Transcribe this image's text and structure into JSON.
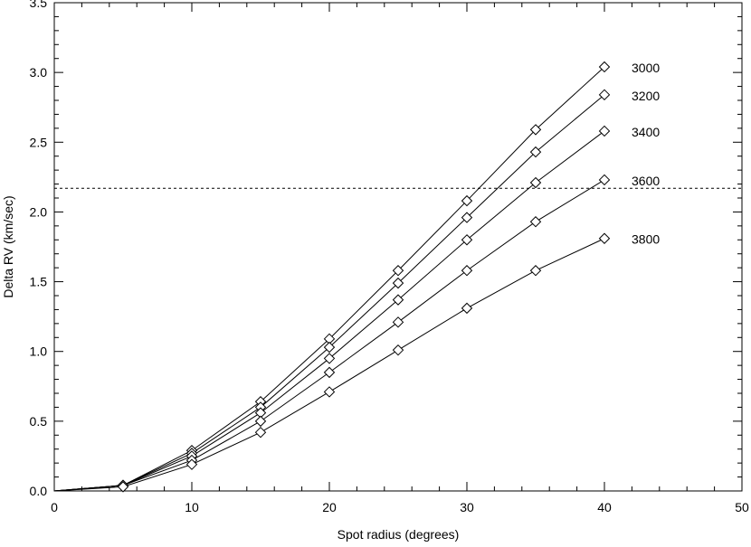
{
  "chart_data": {
    "type": "line",
    "title": "",
    "xlabel": "Spot radius (degrees)",
    "ylabel": "Delta RV (km/sec)",
    "xlim": [
      0,
      50
    ],
    "ylim": [
      0,
      3.5
    ],
    "xticks": [
      0,
      10,
      20,
      30,
      40,
      50
    ],
    "xtick_labels": [
      "0",
      "10",
      "20",
      "30",
      "40",
      "50"
    ],
    "yticks": [
      0,
      0.5,
      1.0,
      1.5,
      2.0,
      2.5,
      3.0,
      3.5
    ],
    "ytick_labels": [
      "0.0",
      "0.5",
      "1.0",
      "1.5",
      "2.0",
      "2.5",
      "3.0",
      "3.5"
    ],
    "grid": false,
    "marker": "diamond",
    "line_color": "#000000",
    "x": [
      0,
      5,
      10,
      15,
      20,
      25,
      30,
      35,
      40
    ],
    "series": [
      {
        "name": "3000",
        "values": [
          0.0,
          0.04,
          0.29,
          0.64,
          1.09,
          1.58,
          2.08,
          2.59,
          3.04
        ]
      },
      {
        "name": "3200",
        "values": [
          0.0,
          0.04,
          0.27,
          0.6,
          1.03,
          1.49,
          1.96,
          2.43,
          2.84
        ]
      },
      {
        "name": "3400",
        "values": [
          0.0,
          0.04,
          0.25,
          0.56,
          0.95,
          1.37,
          1.8,
          2.21,
          2.58
        ]
      },
      {
        "name": "3600",
        "values": [
          0.0,
          0.04,
          0.22,
          0.5,
          0.85,
          1.21,
          1.58,
          1.93,
          2.23
        ]
      },
      {
        "name": "3800",
        "values": [
          0.0,
          0.03,
          0.19,
          0.42,
          0.71,
          1.01,
          1.31,
          1.58,
          1.81
        ]
      }
    ],
    "reference_line": {
      "y": 2.17,
      "style": "dashed"
    }
  }
}
